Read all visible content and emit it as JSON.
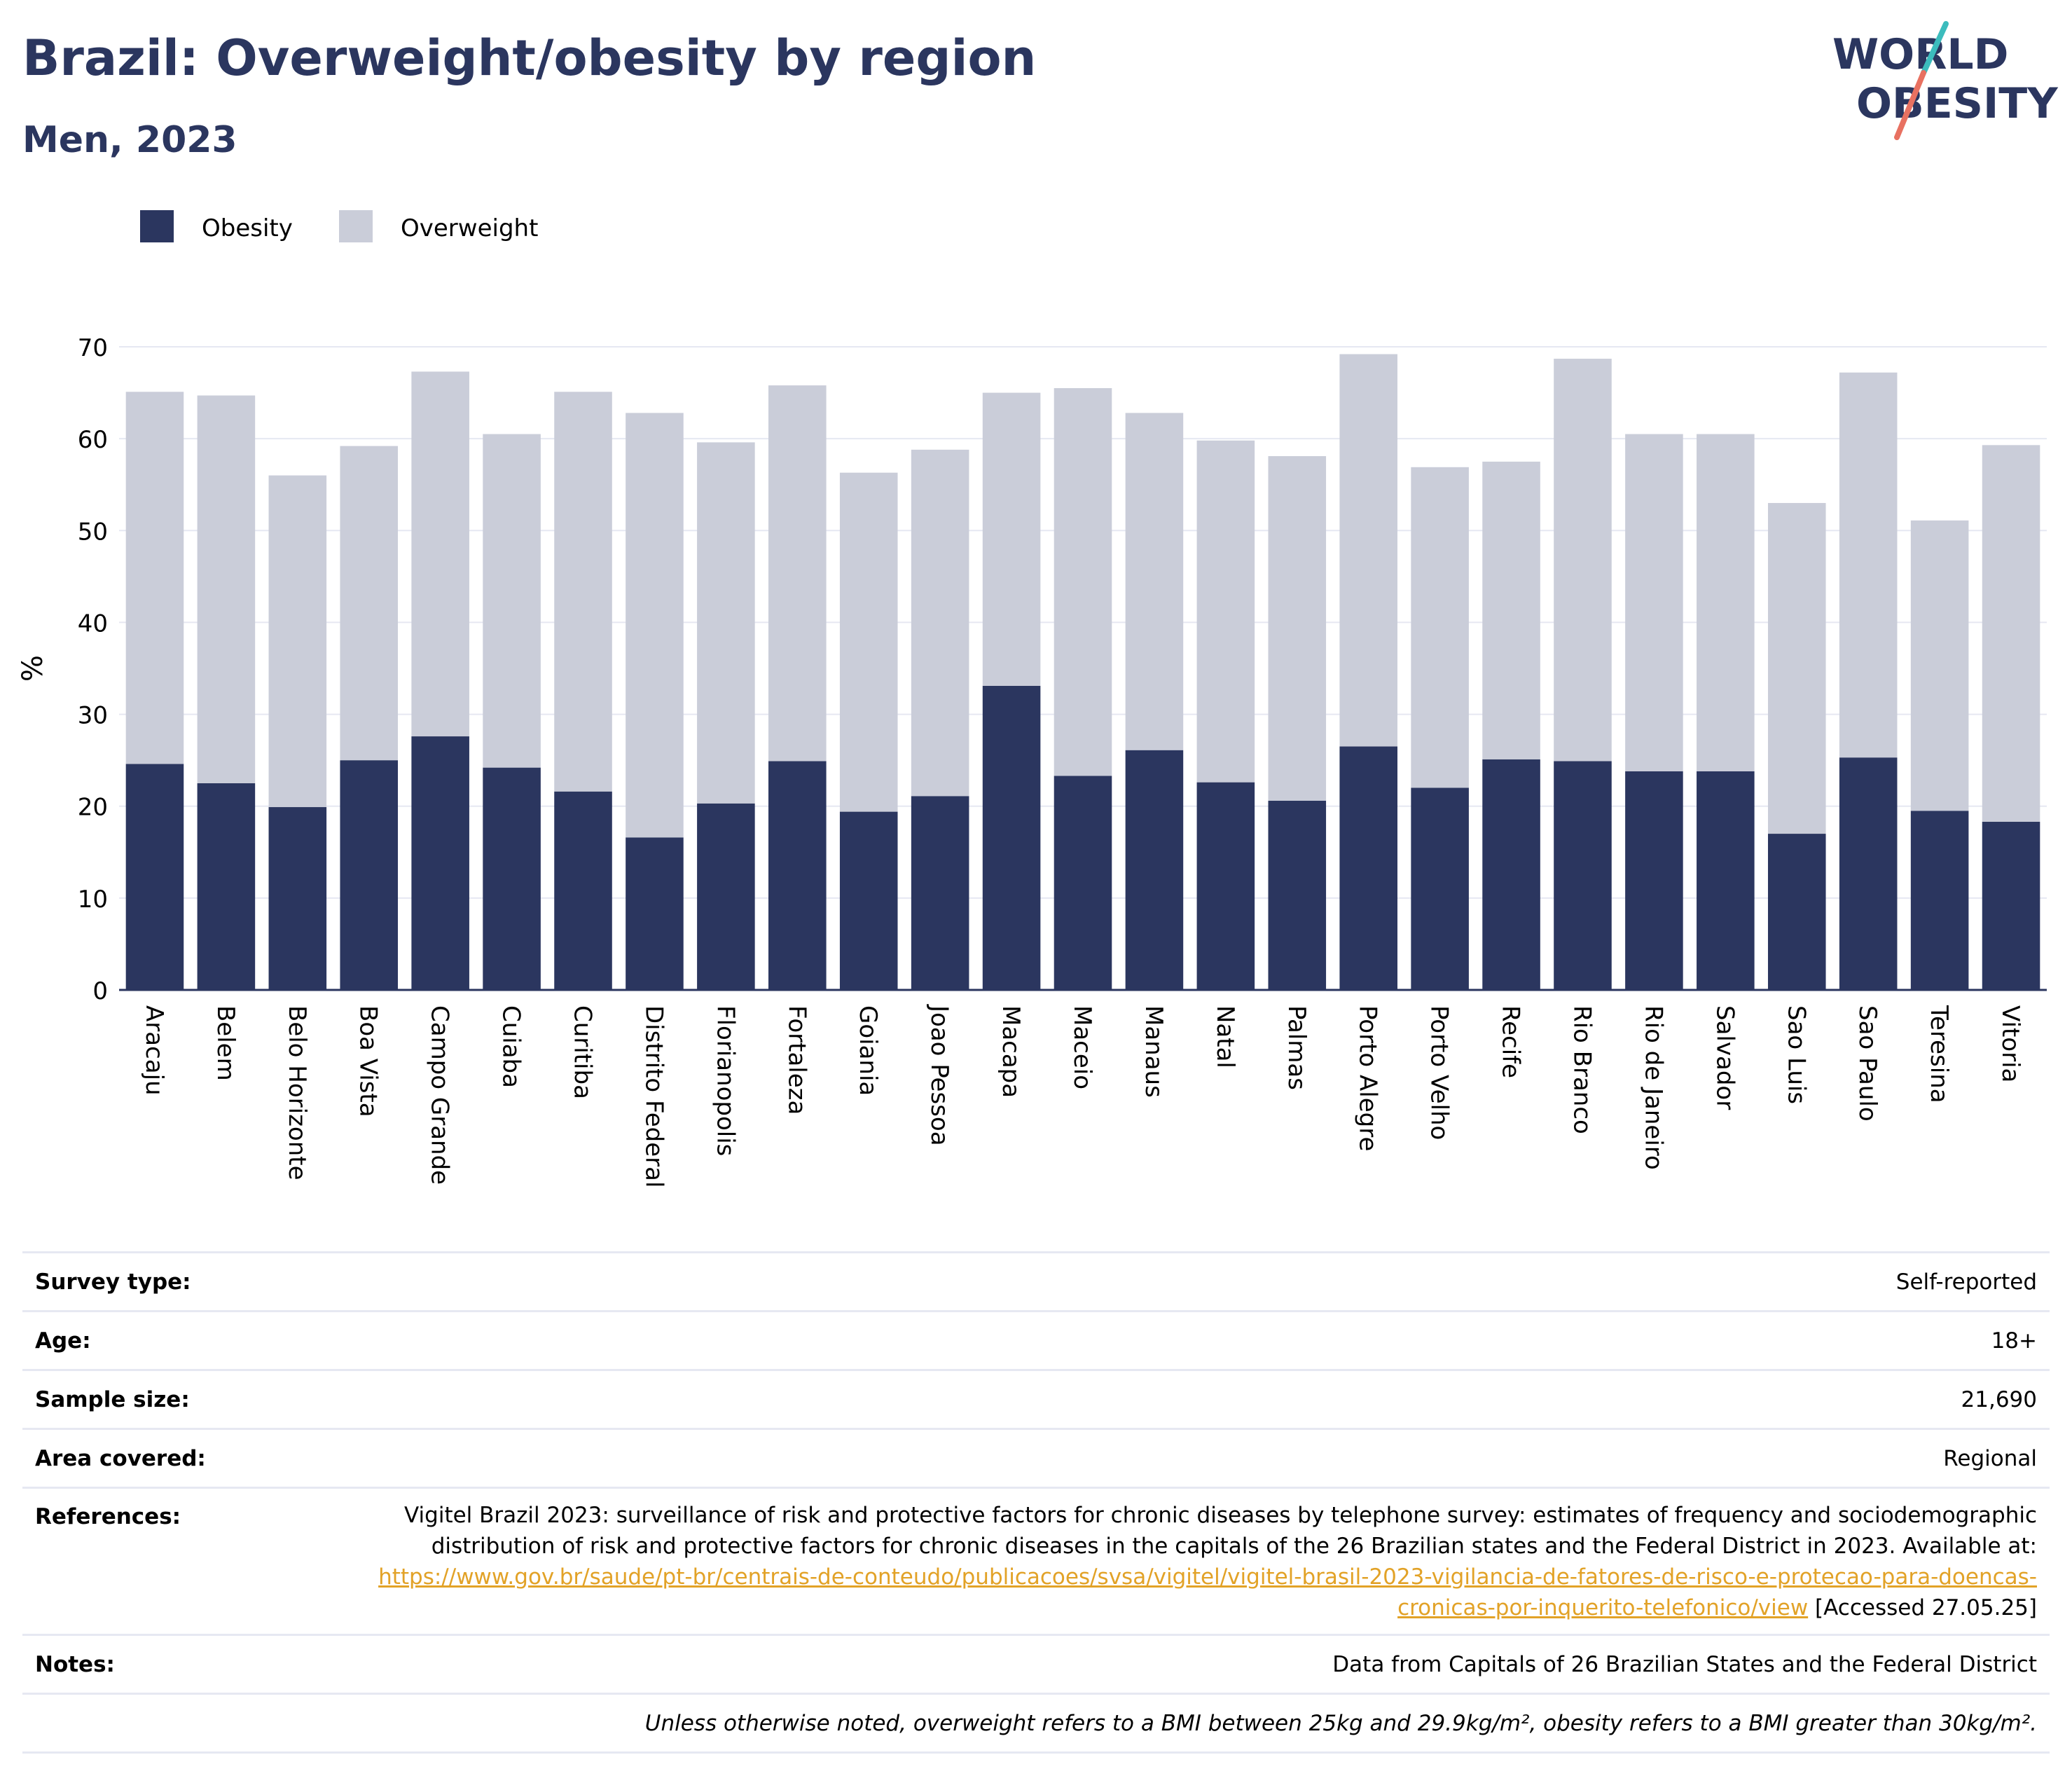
{
  "title": "Brazil: Overweight/obesity by region",
  "subtitle": "Men, 2023",
  "logo": {
    "line1": "WORLD",
    "line2": "OBESITY"
  },
  "colors": {
    "obesity": "#2b365f",
    "overweight": "#cacdd9",
    "title": "#2b365f",
    "grid": "#e6e8f2",
    "link": "#e2a227",
    "logo_teal": "#3cbcbd",
    "logo_coral": "#e87161"
  },
  "chart_data": {
    "type": "bar",
    "stacked": true,
    "ylabel": "%",
    "xlabel": "",
    "ylim": [
      0,
      70
    ],
    "yticks": [
      0,
      10,
      20,
      30,
      40,
      50,
      60,
      70
    ],
    "grid": true,
    "legend_placement": "top-left",
    "categories": [
      "Aracaju",
      "Belem",
      "Belo Horizonte",
      "Boa Vista",
      "Campo Grande",
      "Cuiaba",
      "Curitiba",
      "Distrito Federal",
      "Florianopolis",
      "Fortaleza",
      "Goiania",
      "Joao Pessoa",
      "Macapa",
      "Maceio",
      "Manaus",
      "Natal",
      "Palmas",
      "Porto Alegre",
      "Porto Velho",
      "Recife",
      "Rio Branco",
      "Rio de Janeiro",
      "Salvador",
      "Sao Luis",
      "Sao Paulo",
      "Teresina",
      "Vitoria"
    ],
    "series": [
      {
        "name": "Obesity",
        "values": [
          24.6,
          22.5,
          19.9,
          25.0,
          27.6,
          24.2,
          21.6,
          16.6,
          20.3,
          24.9,
          19.4,
          21.1,
          33.1,
          23.3,
          26.1,
          22.6,
          20.6,
          26.5,
          22.0,
          25.1,
          24.9,
          23.8,
          23.8,
          17.0,
          25.3,
          19.5,
          18.3
        ]
      },
      {
        "name": "Overweight",
        "values": [
          40.5,
          42.2,
          36.1,
          34.2,
          39.7,
          36.3,
          43.5,
          46.2,
          39.3,
          40.9,
          36.9,
          37.7,
          31.9,
          42.2,
          36.7,
          37.2,
          37.5,
          42.7,
          34.9,
          32.4,
          43.8,
          36.7,
          36.7,
          36.0,
          41.9,
          31.6,
          41.0
        ]
      }
    ]
  },
  "info": {
    "survey_type": {
      "label": "Survey type:",
      "value": "Self-reported"
    },
    "age": {
      "label": "Age:",
      "value": "18+"
    },
    "sample_size": {
      "label": "Sample size:",
      "value": "21,690"
    },
    "area_covered": {
      "label": "Area covered:",
      "value": "Regional"
    },
    "references": {
      "label": "References:",
      "text": "Vigitel Brazil 2023: surveillance of risk and protective factors for chronic diseases by telephone survey: estimates of frequency and sociodemographic distribution of risk and protective factors for chronic diseases in the capitals of the 26 Brazilian states and the Federal District in 2023. Available at: ",
      "link": "https://www.gov.br/saude/pt-br/centrais-de-conteudo/publicacoes/svsa/vigitel/vigitel-brasil-2023-vigilancia-de-fatores-de-risco-e-protecao-para-doencas-cronicas-por-inquerito-telefonico/view",
      "accessed": " [Accessed 27.05.25]"
    },
    "notes": {
      "label": "Notes:",
      "value": "Data from Capitals of 26 Brazilian States and the Federal District"
    },
    "footnote": "Unless otherwise noted, overweight refers to a BMI between 25kg and 29.9kg/m², obesity refers to a BMI greater than 30kg/m²."
  }
}
